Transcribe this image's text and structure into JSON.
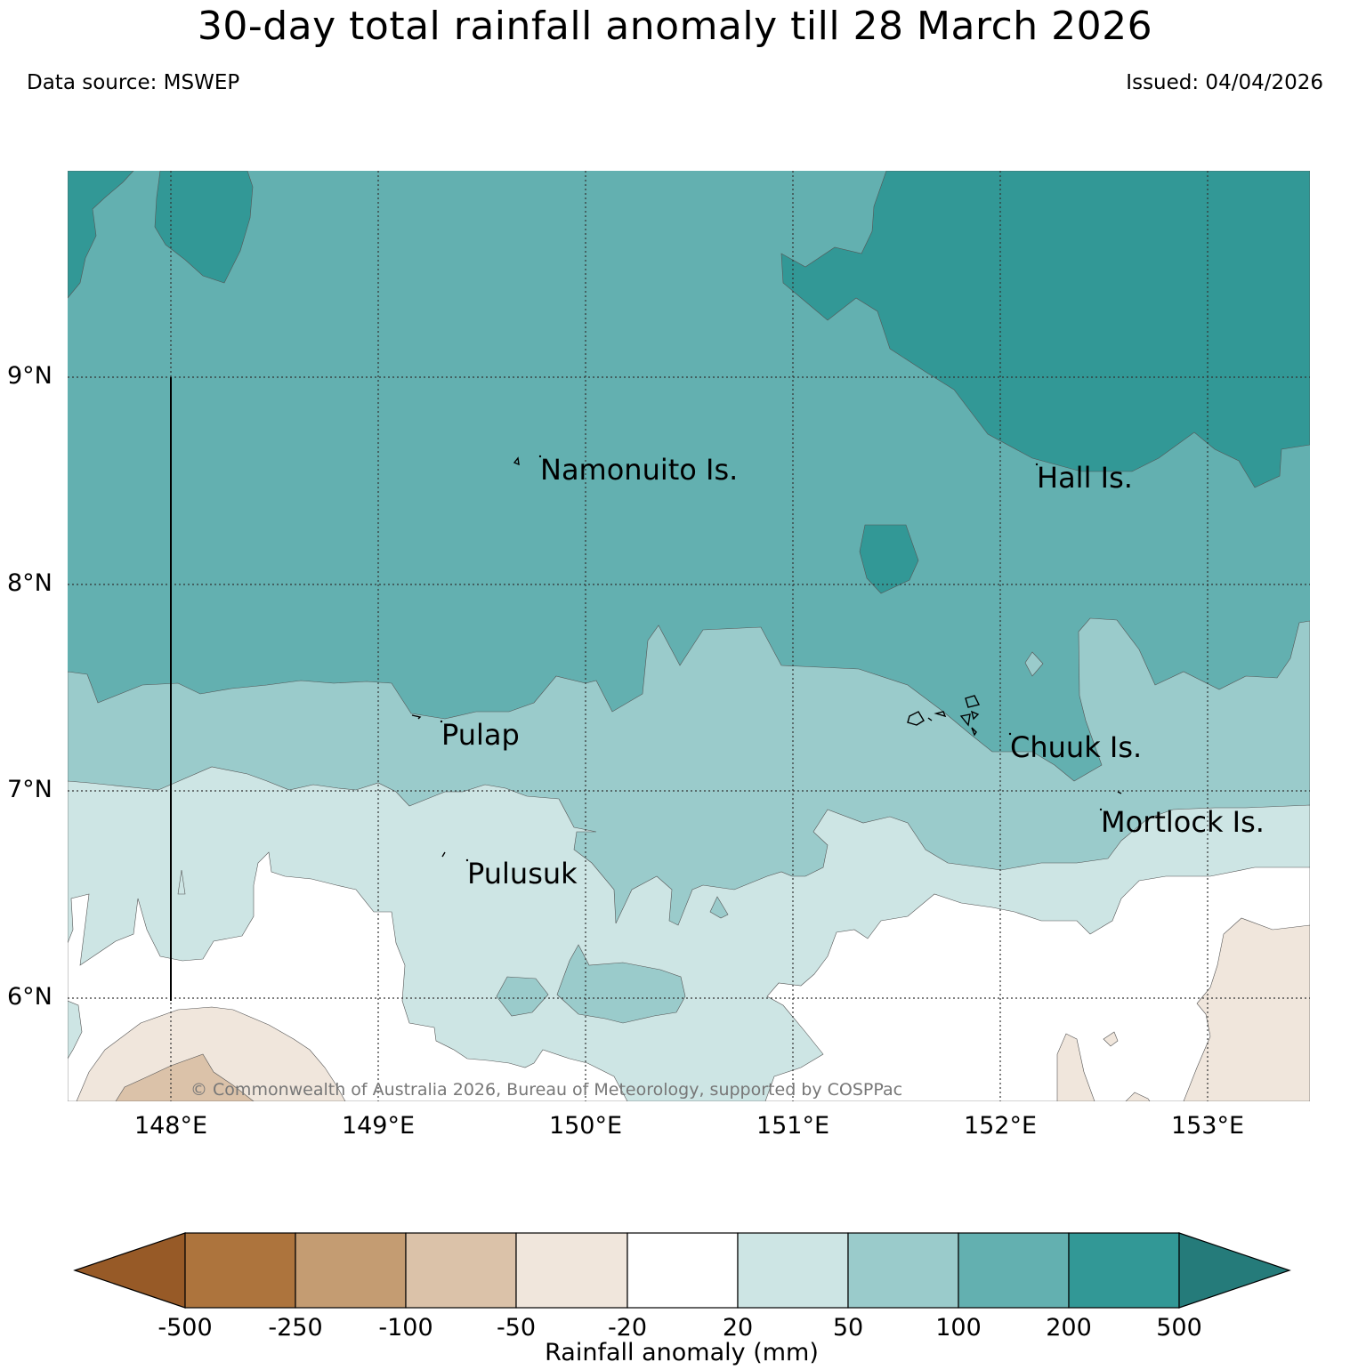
{
  "title": "30-day total rainfall anomaly till 28 March 2026",
  "data_source": "Data source: MSWEP",
  "issued": "Issued: 04/04/2026",
  "copyright": "© Commonwealth of Australia 2026, Bureau of Meteorology, supported by COSPPac",
  "lat_labels": [
    "9°N",
    "8°N",
    "7°N",
    "6°N"
  ],
  "lon_labels": [
    "148°E",
    "149°E",
    "150°E",
    "151°E",
    "152°E",
    "153°E"
  ],
  "places": [
    "Namonuito Is.",
    "Hall Is.",
    "Pulap",
    "Chuuk Is.",
    "Mortlock Is.",
    "Pulusuk"
  ],
  "colorbar": {
    "title": "Rainfall anomaly (mm)",
    "ticks": [
      "-500",
      "-250",
      "-100",
      "-50",
      "-20",
      "20",
      "50",
      "100",
      "200",
      "500"
    ],
    "colors": [
      "#975a27",
      "#ad743d",
      "#c49c72",
      "#dbc2a9",
      "#f0e6dc",
      "#ffffff",
      "#cde5e4",
      "#9acbcb",
      "#63b0b0",
      "#329896",
      "#257b7a"
    ]
  }
}
